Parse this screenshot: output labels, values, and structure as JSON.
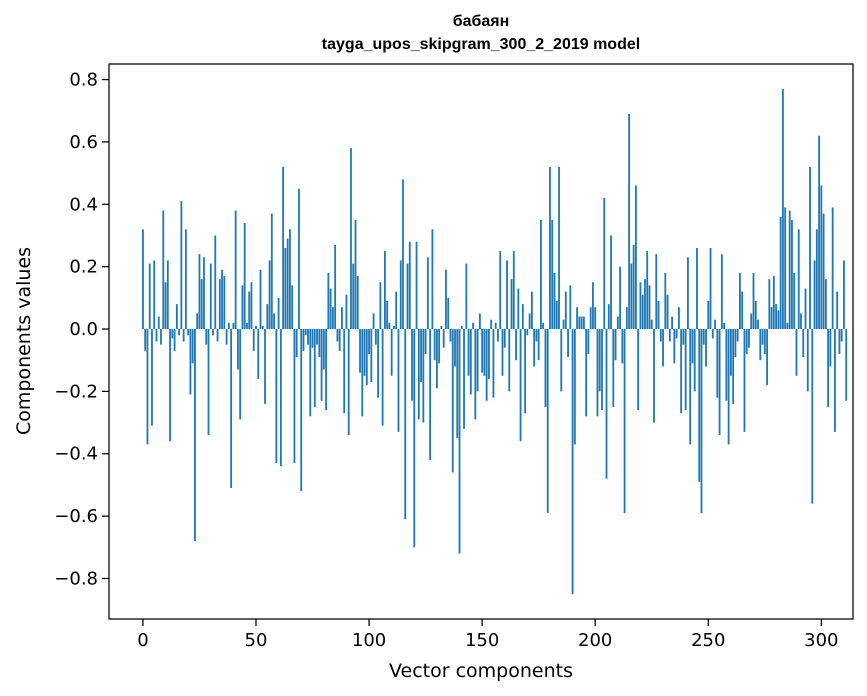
{
  "chart_data": {
    "type": "bar",
    "title": "бабаян",
    "subtitle": "tayga_upos_skipgram_300_2_2019 model",
    "xlabel": "Vector components",
    "ylabel": "Components values",
    "xlim": [
      -15,
      314
    ],
    "ylim": [
      -0.93,
      0.85
    ],
    "xticks": [
      0,
      50,
      100,
      150,
      200,
      250,
      300
    ],
    "xtick_labels": [
      "0",
      "50",
      "100",
      "150",
      "200",
      "250",
      "300"
    ],
    "yticks": [
      0.8,
      0.6,
      0.4,
      0.2,
      0.0,
      -0.2,
      -0.4,
      -0.6,
      -0.8
    ],
    "ytick_labels": [
      "0.8",
      "0.6",
      "0.4",
      "0.2",
      "0.0",
      "−0.2",
      "−0.4",
      "−0.6",
      "−0.8"
    ],
    "grid": false,
    "bar_color": "#1f77b4",
    "values": [
      0.32,
      -0.07,
      -0.37,
      0.21,
      -0.31,
      0.22,
      -0.04,
      0.04,
      -0.05,
      0.38,
      0.15,
      0.22,
      -0.36,
      -0.03,
      -0.07,
      0.08,
      -0.02,
      0.41,
      -0.04,
      0.32,
      -0.02,
      -0.21,
      -0.11,
      -0.68,
      0.05,
      0.24,
      0.16,
      0.23,
      -0.05,
      -0.34,
      0.21,
      -0.02,
      0.3,
      -0.04,
      0.16,
      0.19,
      0.17,
      -0.05,
      0.02,
      -0.51,
      0.02,
      0.38,
      -0.13,
      -0.29,
      0.14,
      0.34,
      0.02,
      0.12,
      0.15,
      -0.07,
      0.01,
      -0.16,
      0.19,
      0.01,
      -0.24,
      0.08,
      0.22,
      0.37,
      0.05,
      -0.43,
      0.1,
      -0.44,
      0.52,
      0.26,
      0.29,
      0.32,
      0.14,
      -0.43,
      -0.09,
      0.45,
      -0.52,
      -0.07,
      -0.02,
      -0.05,
      -0.28,
      -0.06,
      -0.25,
      -0.05,
      -0.09,
      -0.23,
      -0.13,
      -0.26,
      0.18,
      0.13,
      0.07,
      0.27,
      -0.04,
      -0.07,
      0.07,
      -0.27,
      0.11,
      -0.34,
      0.58,
      0.21,
      0.35,
      0.17,
      -0.14,
      -0.28,
      -0.15,
      -0.18,
      -0.08,
      -0.17,
      0.05,
      -0.05,
      -0.22,
      0.15,
      -0.31,
      0.25,
      0.09,
      0.02,
      -0.15,
      0.01,
      0.12,
      -0.33,
      0.22,
      0.48,
      -0.61,
      0.21,
      0.28,
      -0.23,
      -0.7,
      0.28,
      -0.29,
      -0.17,
      -0.3,
      -0.08,
      0.23,
      -0.42,
      0.32,
      -0.1,
      -0.19,
      -0.11,
      0.01,
      -0.06,
      0.19,
      0.1,
      -0.04,
      -0.46,
      -0.12,
      -0.35,
      -0.72,
      0.01,
      -0.32,
      0.21,
      -0.15,
      -0.21,
      0.02,
      -0.29,
      -0.2,
      0.05,
      -0.14,
      -0.15,
      -0.23,
      -0.16,
      0.03,
      -0.22,
      0.02,
      -0.04,
      0.25,
      -0.15,
      -0.06,
      0.22,
      -0.2,
      0.16,
      0.25,
      -0.1,
      0.13,
      -0.36,
      0.08,
      -0.27,
      -0.02,
      0.05,
      0.12,
      -0.12,
      -0.04,
      -0.1,
      0.35,
      0.02,
      -0.25,
      -0.59,
      0.52,
      0.35,
      0.18,
      0.09,
      0.52,
      -0.2,
      0.03,
      0.12,
      -0.09,
      0.14,
      -0.85,
      -0.37,
      0.07,
      0.04,
      0.04,
      0.04,
      -0.28,
      -0.08,
      0.07,
      0.15,
      0.07,
      -0.28,
      -0.2,
      -0.26,
      0.42,
      -0.48,
      0.08,
      0.3,
      -0.25,
      -0.1,
      0.04,
      0.2,
      -0.11,
      -0.59,
      0.07,
      0.69,
      0.21,
      0.27,
      0.46,
      -0.26,
      0.15,
      0.11,
      0.16,
      0.25,
      0.14,
      0.03,
      -0.3,
      0.24,
      0.09,
      -0.04,
      -0.12,
      0.18,
      0.11,
      -0.04,
      0.04,
      -0.11,
      -0.03,
      0.07,
      -0.27,
      -0.05,
      -0.26,
      0.23,
      -0.37,
      -0.11,
      -0.2,
      0.26,
      -0.49,
      -0.59,
      -0.05,
      -0.12,
      0.09,
      0.26,
      -0.03,
      0.03,
      -0.22,
      -0.34,
      0.24,
      0.02,
      -0.23,
      -0.37,
      -0.15,
      -0.24,
      -0.09,
      -0.04,
      0.18,
      0.12,
      -0.33,
      -0.08,
      -0.06,
      0.05,
      0.18,
      0.09,
      0.03,
      -0.1,
      -0.05,
      -0.08,
      -0.18,
      0.16,
      0.07,
      0.17,
      0.08,
      0.06,
      0.36,
      0.77,
      0.39,
      0.02,
      0.38,
      0.35,
      0.18,
      -0.15,
      0.32,
      0.05,
      -0.09,
      0.13,
      -0.2,
      0.52,
      -0.56,
      0.22,
      0.32,
      0.62,
      0.46,
      0.37,
      0.16,
      -0.25,
      -0.12,
      0.39,
      -0.33,
      0.12,
      -0.08,
      -0.04,
      0.22,
      -0.23
    ]
  }
}
